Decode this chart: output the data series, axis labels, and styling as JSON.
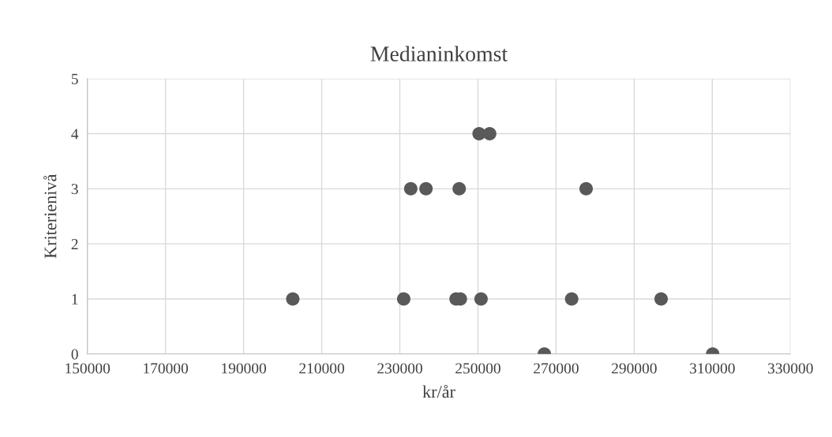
{
  "chart_data": {
    "type": "scatter",
    "title": "Medianinkomst",
    "xlabel": "kr/år",
    "ylabel": "Kriterienivå",
    "series": [
      {
        "color": "#595959",
        "x": [
          202600,
          231000,
          232800,
          236700,
          245200,
          277700,
          250300,
          253000,
          244400,
          245500,
          250800,
          274000,
          296900,
          267000,
          310100
        ],
        "values": [
          1,
          1,
          3,
          3,
          3,
          3,
          4,
          4,
          1,
          1,
          1,
          1,
          1,
          0,
          0
        ]
      }
    ],
    "xlim": [
      150000,
      330000
    ],
    "xticks": [
      150000,
      170000,
      190000,
      210000,
      230000,
      250000,
      270000,
      290000,
      310000,
      330000
    ],
    "ylim": [
      0,
      5
    ],
    "yticks": [
      0,
      1,
      2,
      3,
      4,
      5
    ],
    "grid": true,
    "marker": "circle"
  }
}
